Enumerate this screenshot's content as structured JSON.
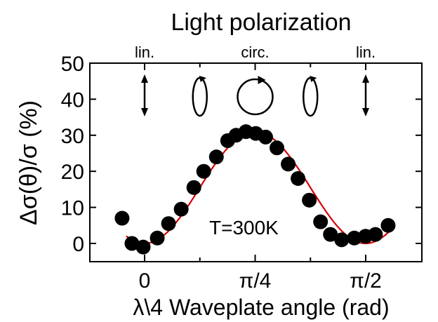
{
  "chart_data": {
    "type": "scatter",
    "title": "Light polarization",
    "xlabel": "λ\\4 Waveplate angle (rad)",
    "ylabel": "Δσ(θ)/σ (%)",
    "xlim": [
      -0.33,
      1.9
    ],
    "ylim": [
      -5,
      50
    ],
    "yticks": [
      0,
      10,
      20,
      30,
      40,
      50
    ],
    "xticks": [
      {
        "value": 0,
        "label": "0"
      },
      {
        "value": 0.7854,
        "label": "π/4"
      },
      {
        "value": 1.5708,
        "label": "π/2"
      }
    ],
    "minor_xticks": [
      0.3927,
      1.1781
    ],
    "annotation": "T=300K",
    "polarization_labels": [
      {
        "x": 0,
        "label": "lin."
      },
      {
        "x": 0.7854,
        "label": "circ."
      },
      {
        "x": 1.5708,
        "label": "lin."
      }
    ],
    "series": [
      {
        "kind": "points",
        "x": [
          -0.16,
          -0.09,
          -0.01,
          0.09,
          0.17,
          0.26,
          0.35,
          0.42,
          0.51,
          0.59,
          0.65,
          0.72,
          0.79,
          0.86,
          0.94,
          1.02,
          1.09,
          1.17,
          1.25,
          1.32,
          1.4,
          1.49,
          1.57,
          1.64,
          1.73
        ],
        "y": [
          7,
          0,
          -1,
          1.5,
          5.5,
          9.5,
          15.5,
          20,
          24,
          28.5,
          30,
          31,
          30.5,
          29.5,
          26.5,
          22,
          18,
          12,
          6,
          2.5,
          1,
          1.5,
          2,
          2.5,
          5
        ]
      },
      {
        "kind": "fit",
        "model": "y = 15.5 - 15.5*cos(4x)"
      }
    ]
  }
}
